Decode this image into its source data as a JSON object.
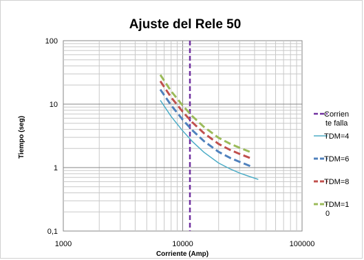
{
  "chart_data": {
    "type": "line",
    "title": "Ajuste del Rele 50",
    "xlabel": "Corriente (Amp)",
    "ylabel": "Tiempo (seg)",
    "x_scale": "log",
    "y_scale": "log",
    "xlim": [
      1000,
      100000
    ],
    "ylim": [
      0.1,
      100
    ],
    "x_ticks": [
      "1000",
      "10000",
      "100000"
    ],
    "y_ticks": [
      "0,1",
      "1",
      "10",
      "100"
    ],
    "grid": true,
    "legend_position": "right",
    "fault_current": {
      "name": "Corrien te falla",
      "legend_lines": [
        "Corrien",
        "te falla"
      ],
      "x": 11500,
      "color": "#7030a0",
      "style": "dashed"
    },
    "series": [
      {
        "name": "TDM=4",
        "legend_lines": [
          "TDM=4"
        ],
        "color": "#4bacc6",
        "style": "solid",
        "x": [
          6500,
          8000,
          10000,
          12000,
          15000,
          20000,
          25000,
          30000,
          35000,
          43000
        ],
        "y": [
          11.5,
          6.4,
          3.8,
          2.6,
          1.75,
          1.18,
          0.95,
          0.82,
          0.74,
          0.65
        ]
      },
      {
        "name": "TDM=6",
        "legend_lines": [
          "TDM=6"
        ],
        "color": "#4f81bd",
        "style": "dashed",
        "x": [
          6500,
          8000,
          10000,
          12000,
          15000,
          20000,
          25000,
          30000,
          38000
        ],
        "y": [
          17,
          9.6,
          5.7,
          3.9,
          2.63,
          1.77,
          1.42,
          1.23,
          1.03
        ]
      },
      {
        "name": "TDM=8",
        "legend_lines": [
          "TDM=8"
        ],
        "color": "#c0504d",
        "style": "dashed",
        "x": [
          6500,
          8000,
          10000,
          12000,
          15000,
          20000,
          25000,
          30000,
          38000
        ],
        "y": [
          23,
          12.8,
          7.6,
          5.2,
          3.5,
          2.36,
          1.9,
          1.64,
          1.38
        ]
      },
      {
        "name": "TDM=10",
        "legend_lines": [
          "TDM=1",
          "0"
        ],
        "color": "#9bbb59",
        "style": "dashed",
        "x": [
          6500,
          8000,
          10000,
          12000,
          15000,
          20000,
          25000,
          30000,
          38000
        ],
        "y": [
          29,
          16,
          9.5,
          6.5,
          4.4,
          2.95,
          2.37,
          2.05,
          1.72
        ]
      }
    ]
  }
}
